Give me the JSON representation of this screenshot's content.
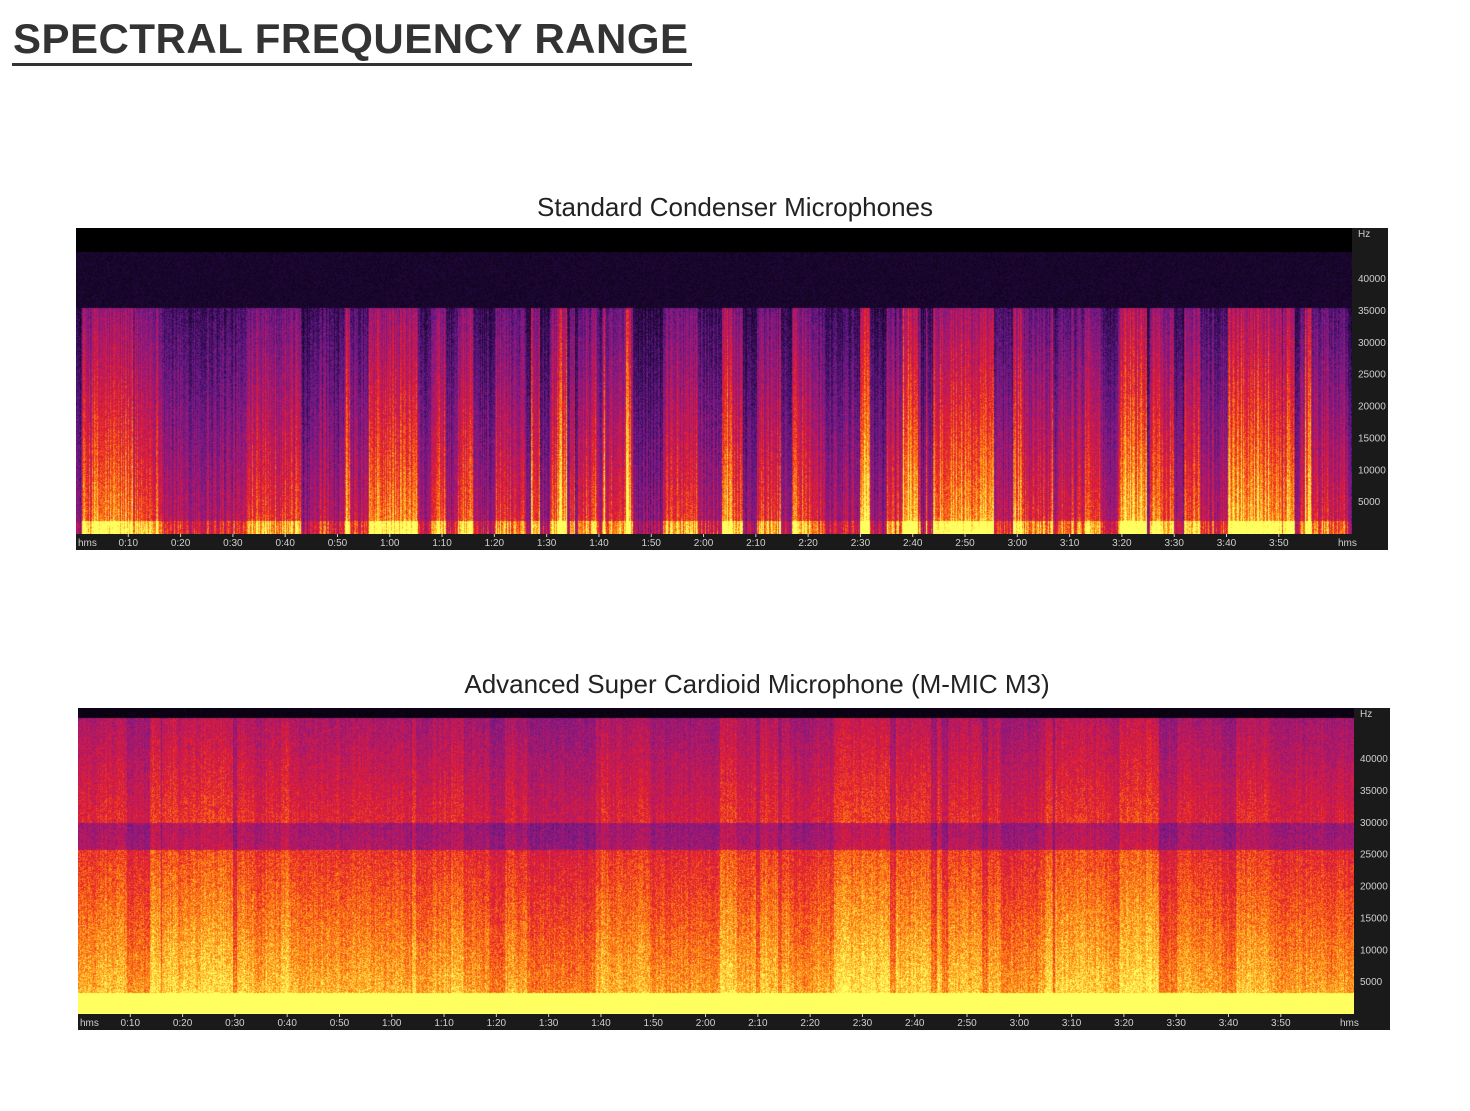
{
  "page": {
    "title": "SPECTRAL FREQUENCY RANGE"
  },
  "chart_data": [
    {
      "type": "heatmap",
      "title": "Standard Condenser Microphones",
      "x_unit_label": "hms",
      "y_unit_label": "Hz",
      "x_ticks": [
        "0:10",
        "0:20",
        "0:30",
        "0:40",
        "0:50",
        "1:00",
        "1:10",
        "1:20",
        "1:30",
        "1:40",
        "1:50",
        "2:00",
        "2:10",
        "2:20",
        "2:30",
        "2:40",
        "2:50",
        "3:00",
        "3:10",
        "3:20",
        "3:30",
        "3:40",
        "3:50"
      ],
      "x_range_seconds": [
        0,
        244
      ],
      "y_ticks": [
        5000,
        10000,
        15000,
        20000,
        25000,
        30000,
        35000,
        40000
      ],
      "y_range_hz": [
        0,
        48000
      ],
      "visible_cutoff_hz": 35500,
      "colormap": [
        "#000000",
        "#2a0a4a",
        "#6a1a8a",
        "#b0186a",
        "#e8202a",
        "#ff8a10",
        "#ffff60"
      ]
    },
    {
      "type": "heatmap",
      "title": "Advanced Super Cardioid Microphone (M-MIC M3)",
      "x_unit_label": "hms",
      "y_unit_label": "Hz",
      "x_ticks": [
        "0:10",
        "0:20",
        "0:30",
        "0:40",
        "0:50",
        "1:00",
        "1:10",
        "1:20",
        "1:30",
        "1:40",
        "1:50",
        "2:00",
        "2:10",
        "2:20",
        "2:30",
        "2:40",
        "2:50",
        "3:00",
        "3:10",
        "3:20",
        "3:30",
        "3:40",
        "3:50"
      ],
      "x_range_seconds": [
        0,
        244
      ],
      "y_ticks": [
        5000,
        10000,
        15000,
        20000,
        25000,
        30000,
        35000,
        40000
      ],
      "y_range_hz": [
        0,
        48000
      ],
      "visible_cutoff_hz": 45000,
      "colormap": [
        "#000000",
        "#2a0a4a",
        "#6a1a8a",
        "#b0186a",
        "#e8202a",
        "#ff8a10",
        "#ffff60"
      ]
    }
  ]
}
